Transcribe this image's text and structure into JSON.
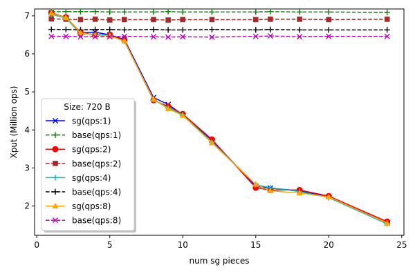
{
  "chart_data": {
    "type": "line",
    "xlabel": "num sg pieces",
    "ylabel": "Xput (Million ops)",
    "xlim": [
      -0.15,
      25.15
    ],
    "ylim": [
      1.23,
      7.18
    ],
    "xticks": [
      0,
      5,
      10,
      15,
      20,
      25
    ],
    "yticks": [
      2,
      3,
      4,
      5,
      6,
      7
    ],
    "grid": false,
    "legend": {
      "title": "Size: 720 B",
      "placement": "lower-left"
    },
    "series": [
      {
        "name": "sg(qps:1)",
        "color": "#0000ff",
        "dash": "solid",
        "marker": "x",
        "x": [
          1,
          2,
          3,
          4,
          5,
          6,
          8,
          9,
          10,
          12,
          15,
          16,
          18,
          20,
          24
        ],
        "y": [
          7.08,
          6.95,
          6.55,
          6.57,
          6.5,
          6.38,
          4.85,
          4.67,
          4.4,
          3.73,
          2.52,
          2.47,
          2.4,
          2.25,
          1.55
        ]
      },
      {
        "name": "base(qps:1)",
        "color": "#008000",
        "dash": "dashed",
        "marker": "+",
        "x": [
          1,
          2,
          3,
          4,
          5,
          6,
          8,
          9,
          10,
          12,
          15,
          16,
          18,
          20,
          24
        ],
        "y": [
          7.11,
          7.11,
          7.11,
          7.11,
          7.1,
          7.1,
          7.1,
          7.11,
          7.1,
          7.1,
          7.1,
          7.11,
          7.1,
          7.1,
          7.09
        ]
      },
      {
        "name": "sg(qps:2)",
        "color": "#ff0000",
        "dash": "solid",
        "marker": "o",
        "x": [
          1,
          2,
          3,
          4,
          5,
          6,
          8,
          9,
          10,
          12,
          15,
          16,
          18,
          20,
          24
        ],
        "y": [
          7.07,
          6.96,
          6.56,
          6.5,
          6.5,
          6.36,
          4.78,
          4.62,
          4.42,
          3.75,
          2.48,
          2.42,
          2.42,
          2.26,
          1.59
        ]
      },
      {
        "name": "base(qps:2)",
        "color": "#a52a2a",
        "dash": "dashed",
        "marker": "s",
        "x": [
          1,
          2,
          3,
          4,
          5,
          6,
          8,
          9,
          10,
          12,
          15,
          16,
          18,
          20,
          24
        ],
        "y": [
          6.92,
          6.91,
          6.9,
          6.91,
          6.89,
          6.9,
          6.9,
          6.89,
          6.9,
          6.9,
          6.9,
          6.91,
          6.91,
          6.9,
          6.91
        ]
      },
      {
        "name": "sg(qps:4)",
        "color": "#00bfbf",
        "dash": "solid",
        "marker": "+",
        "x": [
          1,
          2,
          3,
          4,
          5,
          6,
          8,
          9,
          10,
          12,
          15,
          16,
          18,
          20,
          24
        ],
        "y": [
          7.04,
          6.94,
          6.52,
          6.52,
          6.48,
          6.33,
          4.8,
          4.58,
          4.4,
          3.68,
          2.56,
          2.48,
          2.38,
          2.22,
          1.53
        ]
      },
      {
        "name": "base(qps:4)",
        "color": "#000000",
        "dash": "dashed",
        "marker": "+",
        "x": [
          1,
          2,
          3,
          4,
          5,
          6,
          8,
          9,
          10,
          12,
          15,
          16,
          18,
          20,
          24
        ],
        "y": [
          6.64,
          6.64,
          6.63,
          6.64,
          6.64,
          6.63,
          6.64,
          6.63,
          6.63,
          6.64,
          6.63,
          6.64,
          6.63,
          6.63,
          6.63
        ]
      },
      {
        "name": "sg(qps:8)",
        "color": "#ffa500",
        "dash": "solid",
        "marker": "^",
        "x": [
          1,
          2,
          3,
          4,
          5,
          6,
          8,
          9,
          10,
          12,
          15,
          16,
          18,
          20,
          24
        ],
        "y": [
          7.07,
          6.95,
          6.55,
          6.49,
          6.47,
          6.34,
          4.8,
          4.56,
          4.38,
          3.66,
          2.57,
          2.4,
          2.34,
          2.24,
          1.55
        ]
      },
      {
        "name": "base(qps:8)",
        "color": "#bf00bf",
        "dash": "dashed",
        "marker": "x",
        "x": [
          1,
          2,
          3,
          4,
          5,
          6,
          8,
          9,
          10,
          12,
          15,
          16,
          18,
          20,
          24
        ],
        "y": [
          6.46,
          6.46,
          6.45,
          6.45,
          6.45,
          6.46,
          6.45,
          6.44,
          6.45,
          6.44,
          6.46,
          6.47,
          6.45,
          6.46,
          6.46
        ]
      }
    ]
  }
}
